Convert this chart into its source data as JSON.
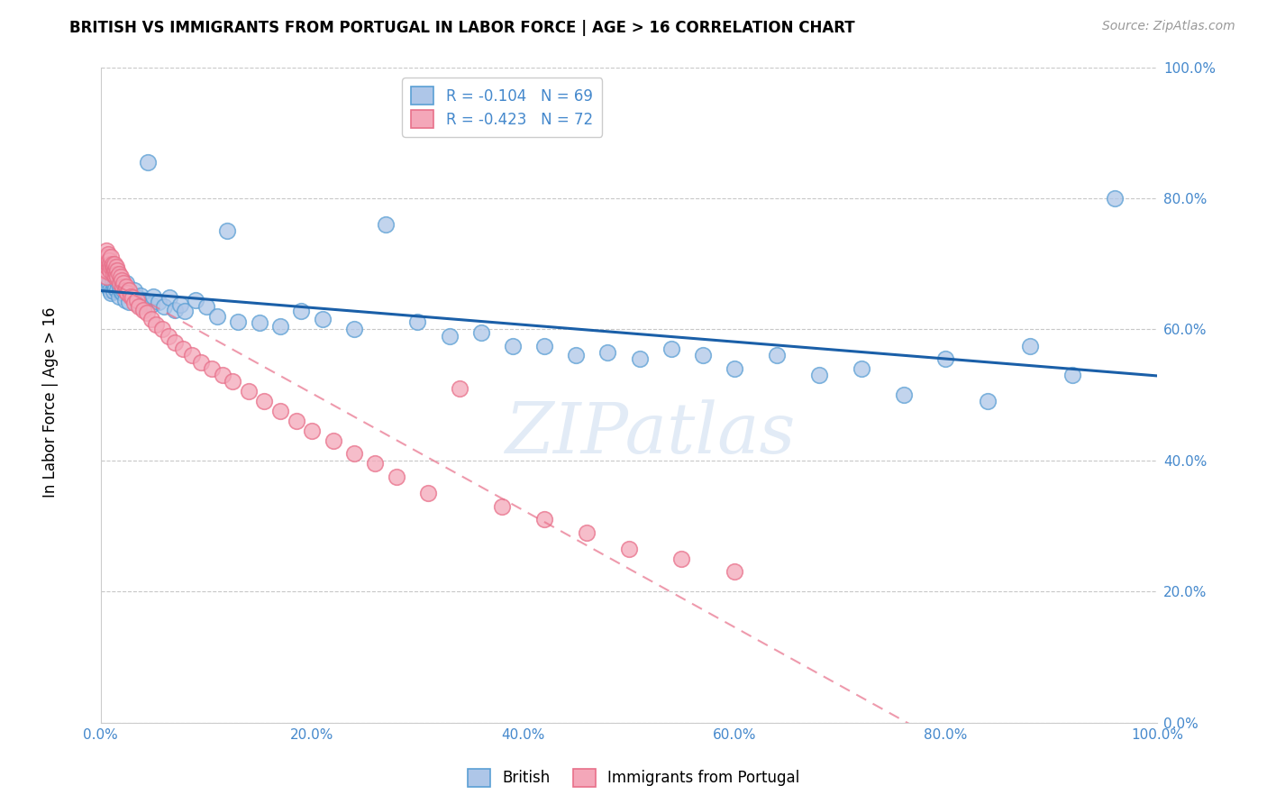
{
  "title": "BRITISH VS IMMIGRANTS FROM PORTUGAL IN LABOR FORCE | AGE > 16 CORRELATION CHART",
  "source": "Source: ZipAtlas.com",
  "ylabel": "In Labor Force | Age > 16",
  "r_british": -0.104,
  "n_british": 69,
  "r_portugal": -0.423,
  "n_portugal": 72,
  "british_color": "#aec6e8",
  "portugal_color": "#f4a7b9",
  "british_edge": "#5a9fd4",
  "portugal_edge": "#e8708a",
  "trendline_british": "#1a5fa8",
  "trendline_portugal": "#e8708a",
  "watermark": "ZIPatlas",
  "background_color": "#ffffff",
  "grid_color": "#c8c8c8",
  "tick_color": "#4488cc",
  "legend_entries": [
    "British",
    "Immigrants from Portugal"
  ],
  "xlim": [
    0.0,
    1.0
  ],
  "ylim": [
    0.0,
    1.0
  ],
  "xticks": [
    0.0,
    0.2,
    0.4,
    0.6,
    0.8,
    1.0
  ],
  "yticks": [
    0.0,
    0.2,
    0.4,
    0.6,
    0.8,
    1.0
  ],
  "british_x": [
    0.005,
    0.007,
    0.008,
    0.009,
    0.01,
    0.011,
    0.012,
    0.013,
    0.014,
    0.015,
    0.016,
    0.017,
    0.018,
    0.019,
    0.02,
    0.021,
    0.022,
    0.023,
    0.024,
    0.025,
    0.027,
    0.028,
    0.03,
    0.032,
    0.034,
    0.036,
    0.038,
    0.04,
    0.042,
    0.045,
    0.048,
    0.05,
    0.055,
    0.06,
    0.065,
    0.07,
    0.075,
    0.08,
    0.09,
    0.1,
    0.11,
    0.12,
    0.13,
    0.15,
    0.17,
    0.19,
    0.21,
    0.24,
    0.27,
    0.3,
    0.33,
    0.36,
    0.39,
    0.42,
    0.45,
    0.48,
    0.51,
    0.54,
    0.57,
    0.6,
    0.64,
    0.68,
    0.72,
    0.76,
    0.8,
    0.84,
    0.88,
    0.92,
    0.96
  ],
  "british_y": [
    0.68,
    0.665,
    0.67,
    0.66,
    0.655,
    0.672,
    0.658,
    0.668,
    0.663,
    0.675,
    0.66,
    0.65,
    0.662,
    0.658,
    0.668,
    0.655,
    0.66,
    0.645,
    0.67,
    0.658,
    0.642,
    0.655,
    0.65,
    0.66,
    0.648,
    0.638,
    0.652,
    0.645,
    0.64,
    0.855,
    0.638,
    0.65,
    0.642,
    0.635,
    0.648,
    0.63,
    0.638,
    0.628,
    0.645,
    0.635,
    0.62,
    0.75,
    0.612,
    0.61,
    0.605,
    0.628,
    0.615,
    0.6,
    0.76,
    0.612,
    0.59,
    0.595,
    0.575,
    0.575,
    0.56,
    0.565,
    0.555,
    0.57,
    0.56,
    0.54,
    0.56,
    0.53,
    0.54,
    0.5,
    0.555,
    0.49,
    0.575,
    0.53,
    0.8
  ],
  "portugal_x": [
    0.003,
    0.004,
    0.005,
    0.005,
    0.006,
    0.006,
    0.007,
    0.007,
    0.007,
    0.008,
    0.008,
    0.009,
    0.009,
    0.01,
    0.01,
    0.011,
    0.011,
    0.012,
    0.012,
    0.013,
    0.013,
    0.014,
    0.014,
    0.015,
    0.015,
    0.016,
    0.016,
    0.017,
    0.018,
    0.019,
    0.02,
    0.021,
    0.022,
    0.023,
    0.024,
    0.025,
    0.027,
    0.028,
    0.03,
    0.032,
    0.034,
    0.036,
    0.04,
    0.044,
    0.048,
    0.052,
    0.058,
    0.064,
    0.07,
    0.078,
    0.086,
    0.095,
    0.105,
    0.115,
    0.125,
    0.14,
    0.155,
    0.17,
    0.185,
    0.2,
    0.22,
    0.24,
    0.26,
    0.28,
    0.31,
    0.34,
    0.38,
    0.42,
    0.46,
    0.5,
    0.55,
    0.6
  ],
  "portugal_y": [
    0.69,
    0.7,
    0.72,
    0.68,
    0.71,
    0.695,
    0.705,
    0.7,
    0.715,
    0.695,
    0.705,
    0.7,
    0.69,
    0.695,
    0.71,
    0.695,
    0.7,
    0.685,
    0.695,
    0.69,
    0.7,
    0.68,
    0.69,
    0.695,
    0.685,
    0.69,
    0.68,
    0.685,
    0.67,
    0.68,
    0.675,
    0.665,
    0.67,
    0.66,
    0.665,
    0.655,
    0.66,
    0.65,
    0.648,
    0.64,
    0.645,
    0.635,
    0.63,
    0.625,
    0.615,
    0.608,
    0.6,
    0.59,
    0.58,
    0.57,
    0.56,
    0.55,
    0.54,
    0.53,
    0.52,
    0.505,
    0.49,
    0.475,
    0.46,
    0.445,
    0.43,
    0.41,
    0.395,
    0.375,
    0.35,
    0.51,
    0.33,
    0.31,
    0.29,
    0.265,
    0.25,
    0.23
  ]
}
